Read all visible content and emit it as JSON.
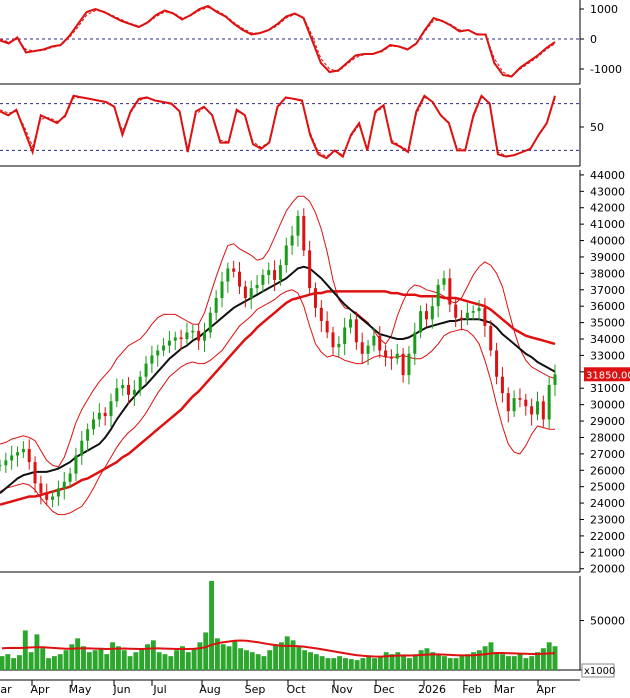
{
  "chart_data": [
    {
      "type": "line",
      "panel": "oscillator-top",
      "yticks": [
        "1000",
        "0",
        "-1000"
      ],
      "ylim": [
        -1500,
        1300
      ],
      "reference_lines": [
        0
      ],
      "series": [
        {
          "color": "#dd1111",
          "values": [
            -50,
            -150,
            50,
            -450,
            -400,
            -350,
            -250,
            -200,
            100,
            500,
            900,
            1000,
            900,
            750,
            600,
            500,
            400,
            550,
            800,
            950,
            850,
            650,
            800,
            1000,
            1100,
            900,
            750,
            500,
            300,
            150,
            200,
            300,
            500,
            750,
            850,
            700,
            -50,
            -800,
            -1100,
            -1050,
            -800,
            -550,
            -500,
            -500,
            -400,
            -200,
            -250,
            -350,
            -150,
            300,
            700,
            600,
            450,
            250,
            300,
            150,
            150,
            -800,
            -1200,
            -1250,
            -950,
            -750,
            -550,
            -300,
            -100
          ]
        },
        {
          "color": "#dd1111",
          "dashed": true,
          "values": [
            0,
            -100,
            0,
            -350,
            -400,
            -380,
            -280,
            -220,
            50,
            400,
            800,
            950,
            920,
            780,
            650,
            520,
            430,
            520,
            750,
            900,
            870,
            700,
            780,
            950,
            1050,
            950,
            780,
            550,
            350,
            200,
            200,
            280,
            450,
            700,
            820,
            740,
            100,
            -650,
            -1000,
            -1080,
            -850,
            -620,
            -520,
            -500,
            -430,
            -240,
            -250,
            -320,
            -180,
            250,
            620,
            620,
            480,
            300,
            290,
            180,
            150,
            -650,
            -1100,
            -1250,
            -1000,
            -800,
            -600,
            -350,
            -150
          ]
        }
      ]
    },
    {
      "type": "line",
      "panel": "stochastic",
      "yticks": [
        "50"
      ],
      "ylim": [
        0,
        100
      ],
      "reference_lines": [
        80,
        20
      ],
      "series": [
        {
          "color": "#dd1111",
          "values": [
            70,
            65,
            72,
            45,
            18,
            65,
            60,
            55,
            65,
            90,
            88,
            86,
            84,
            82,
            76,
            40,
            70,
            86,
            88,
            84,
            82,
            80,
            70,
            18,
            70,
            76,
            65,
            30,
            30,
            72,
            65,
            28,
            22,
            30,
            76,
            88,
            86,
            84,
            40,
            15,
            10,
            20,
            12,
            40,
            55,
            20,
            70,
            78,
            30,
            25,
            18,
            70,
            90,
            82,
            65,
            55,
            20,
            20,
            65,
            90,
            80,
            15,
            12,
            14,
            18,
            22,
            40,
            55,
            90
          ]
        },
        {
          "color": "#dd1111",
          "dashed": true,
          "values": [
            72,
            68,
            70,
            50,
            25,
            60,
            62,
            57,
            63,
            87,
            88,
            86,
            84,
            81,
            76,
            45,
            68,
            84,
            87,
            84,
            82,
            79,
            70,
            22,
            66,
            75,
            66,
            33,
            31,
            70,
            66,
            31,
            24,
            31,
            74,
            87,
            86,
            83,
            43,
            18,
            12,
            20,
            14,
            38,
            53,
            22,
            68,
            76,
            33,
            26,
            20,
            66,
            88,
            83,
            66,
            56,
            23,
            21,
            62,
            88,
            81,
            18,
            13,
            14,
            18,
            23,
            39,
            54,
            87
          ]
        }
      ]
    },
    {
      "type": "candlestick",
      "panel": "price",
      "yticks": [
        "44000",
        "43000",
        "42000",
        "41000",
        "40000",
        "39000",
        "38000",
        "37000",
        "36000",
        "35000",
        "34000",
        "33000",
        "32000",
        "31000",
        "30000",
        "29000",
        "28000",
        "27000",
        "26000",
        "25000",
        "24000",
        "23000",
        "22000",
        "21000",
        "20000"
      ],
      "ylim": [
        19800,
        44300
      ],
      "last_price_label": "31850.00",
      "x_labels": [
        "ar",
        "Apr",
        "May",
        "Jun",
        "Jul",
        "Aug",
        "Sep",
        "Oct",
        "Nov",
        "Dec",
        "2026",
        "Feb",
        "Mar",
        "Apr"
      ],
      "close": [
        26300,
        26600,
        26900,
        27100,
        27300,
        26500,
        25200,
        24600,
        24200,
        24400,
        24900,
        25300,
        25800,
        26900,
        27800,
        28500,
        29100,
        29500,
        29300,
        30200,
        31000,
        31200,
        30600,
        30900,
        31700,
        32500,
        33000,
        33300,
        33600,
        33900,
        34100,
        34000,
        34400,
        34500,
        33900,
        34400,
        35600,
        36500,
        37500,
        38300,
        38100,
        37200,
        36500,
        37100,
        37300,
        37900,
        38200,
        37600,
        38500,
        39700,
        40300,
        41500,
        39400,
        37100,
        35900,
        35100,
        34400,
        33500,
        33700,
        34700,
        35200,
        33800,
        33100,
        33600,
        34200,
        33300,
        32900,
        32800,
        33100,
        31800,
        33100,
        34400,
        35700,
        35200,
        36000,
        37300,
        37700,
        36100,
        35300,
        35200,
        35600,
        35700,
        35900,
        34800,
        33300,
        31700,
        30700,
        29600,
        30400,
        30300,
        29900,
        29400,
        30200,
        29100,
        31200,
        31850
      ],
      "bollinger_upper": [
        27600,
        27700,
        27900,
        28000,
        28100,
        28000,
        27800,
        27200,
        26600,
        26300,
        26200,
        26800,
        27800,
        28900,
        29700,
        30300,
        30900,
        31400,
        31800,
        32200,
        32800,
        33200,
        33600,
        33800,
        34000,
        34400,
        34900,
        35300,
        35500,
        35500,
        35500,
        35300,
        35100,
        34900,
        34900,
        35600,
        36700,
        37800,
        38800,
        39700,
        39800,
        39500,
        39300,
        39100,
        38800,
        38900,
        39400,
        40200,
        41000,
        41800,
        42300,
        42700,
        42700,
        42400,
        41700,
        40700,
        39300,
        37600,
        36400,
        35900,
        35800,
        35600,
        35300,
        35000,
        34500,
        34000,
        33700,
        34200,
        35400,
        36300,
        37000,
        37300,
        37200,
        37000,
        36900,
        36800,
        36600,
        36300,
        36200,
        36500,
        37200,
        37900,
        38400,
        38700,
        38500,
        38000,
        37200,
        35800,
        34500,
        33400,
        32700,
        32300,
        32100,
        31900,
        31700,
        31600
      ],
      "bollinger_lower": [
        24700,
        24900,
        25000,
        25100,
        25200,
        25100,
        24800,
        24300,
        23900,
        23500,
        23300,
        23300,
        23400,
        23600,
        23800,
        24300,
        24900,
        25600,
        26200,
        26800,
        27400,
        27900,
        28300,
        28600,
        29000,
        29500,
        30100,
        30700,
        31200,
        31700,
        32000,
        32300,
        32500,
        32600,
        32500,
        32500,
        32700,
        33000,
        33300,
        33800,
        34300,
        34800,
        35100,
        35400,
        35800,
        36000,
        36200,
        36400,
        36700,
        36900,
        37000,
        36800,
        36000,
        34800,
        33700,
        33200,
        32900,
        33000,
        32900,
        32700,
        32600,
        32500,
        32500,
        32700,
        32900,
        33000,
        32900,
        32900,
        32900,
        33000,
        32900,
        32800,
        32800,
        33000,
        33300,
        33700,
        34200,
        34400,
        34500,
        34600,
        34500,
        34200,
        33700,
        32700,
        31500,
        30000,
        28700,
        27600,
        27100,
        27000,
        27500,
        28200,
        28700,
        28600,
        28500,
        28500
      ],
      "sma_fast": [
        24600,
        24900,
        25200,
        25500,
        25700,
        25800,
        25900,
        25900,
        25900,
        26000,
        26100,
        26300,
        26500,
        26800,
        27000,
        27200,
        27400,
        27600,
        28000,
        28500,
        29100,
        29600,
        30100,
        30500,
        30900,
        31200,
        31600,
        32000,
        32400,
        32800,
        33100,
        33400,
        33600,
        33900,
        34100,
        34400,
        34700,
        35000,
        35300,
        35600,
        35900,
        36100,
        36300,
        36500,
        36700,
        36900,
        37100,
        37300,
        37500,
        37700,
        38000,
        38300,
        38400,
        38300,
        38000,
        37700,
        37300,
        36900,
        36500,
        36100,
        35800,
        35500,
        35200,
        34900,
        34600,
        34300,
        34200,
        34100,
        34000,
        34000,
        34100,
        34300,
        34500,
        34700,
        34800,
        34900,
        35000,
        35100,
        35100,
        35200,
        35200,
        35200,
        35200,
        35100,
        35000,
        34700,
        34300,
        34000,
        33700,
        33400,
        33100,
        32900,
        32600,
        32400,
        32200,
        32000
      ],
      "sma_slow": [
        23900,
        24000,
        24100,
        24200,
        24300,
        24400,
        24400,
        24500,
        24600,
        24700,
        24800,
        24900,
        25000,
        25200,
        25400,
        25500,
        25700,
        25900,
        26100,
        26300,
        26500,
        26800,
        27000,
        27300,
        27600,
        27900,
        28200,
        28500,
        28800,
        29100,
        29400,
        29700,
        30100,
        30500,
        30800,
        31200,
        31600,
        32000,
        32400,
        32800,
        33200,
        33600,
        34000,
        34300,
        34700,
        35000,
        35300,
        35600,
        35900,
        36200,
        36400,
        36500,
        36600,
        36700,
        36800,
        36800,
        36900,
        36900,
        36900,
        36900,
        36900,
        36900,
        36900,
        36900,
        36900,
        36900,
        36900,
        36800,
        36800,
        36700,
        36700,
        36700,
        36600,
        36600,
        36600,
        36600,
        36500,
        36500,
        36500,
        36400,
        36300,
        36200,
        36100,
        36000,
        35800,
        35500,
        35200,
        34900,
        34600,
        34400,
        34200,
        34100,
        34000,
        33900,
        33800,
        33700
      ]
    },
    {
      "type": "bar",
      "panel": "volume",
      "yticks": [
        "50000",
        "0"
      ],
      "units_label": "x1000",
      "ylim": [
        0,
        95000
      ],
      "values": [
        14000,
        16000,
        12000,
        15000,
        40000,
        18000,
        36000,
        22000,
        12000,
        14000,
        16000,
        20000,
        26000,
        32000,
        24000,
        18000,
        20000,
        22000,
        16000,
        28000,
        24000,
        20000,
        14000,
        18000,
        22000,
        26000,
        30000,
        18000,
        16000,
        14000,
        20000,
        24000,
        18000,
        22000,
        28000,
        38000,
        90000,
        32000,
        26000,
        24000,
        30000,
        22000,
        20000,
        18000,
        16000,
        14000,
        20000,
        26000,
        28000,
        34000,
        30000,
        24000,
        20000,
        18000,
        16000,
        14000,
        12000,
        12000,
        14000,
        12000,
        11000,
        10000,
        12000,
        14000,
        12000,
        14000,
        18000,
        16000,
        18000,
        14000,
        12000,
        16000,
        20000,
        22000,
        18000,
        16000,
        14000,
        12000,
        12000,
        14000,
        16000,
        18000,
        20000,
        24000,
        28000,
        18000,
        16000,
        14000,
        14000,
        16000,
        12000,
        14000,
        18000,
        22000,
        28000,
        24000
      ],
      "ma": [
        22000,
        22200,
        22300,
        22200,
        22500,
        22800,
        23000,
        23000,
        22600,
        22200,
        21800,
        21500,
        21500,
        21800,
        22000,
        21800,
        21600,
        21400,
        21200,
        21400,
        21600,
        21700,
        21500,
        21300,
        21200,
        21400,
        21800,
        21800,
        21600,
        21400,
        21200,
        21300,
        21200,
        21500,
        22000,
        23000,
        25500,
        27000,
        28000,
        28800,
        29500,
        29800,
        29500,
        28800,
        28000,
        27000,
        26000,
        25200,
        24600,
        24400,
        24300,
        24000,
        23400,
        22600,
        21800,
        20800,
        19800,
        18800,
        17800,
        16800,
        15800,
        15000,
        14400,
        13900,
        13600,
        13500,
        13800,
        14200,
        14600,
        14800,
        14700,
        14800,
        15200,
        15600,
        15800,
        15800,
        15600,
        15300,
        15000,
        14800,
        14800,
        15000,
        15400,
        16000,
        16800,
        17200,
        17200,
        17000,
        16800,
        16600,
        16400,
        16200,
        16200,
        16400,
        16800,
        17000
      ]
    }
  ]
}
